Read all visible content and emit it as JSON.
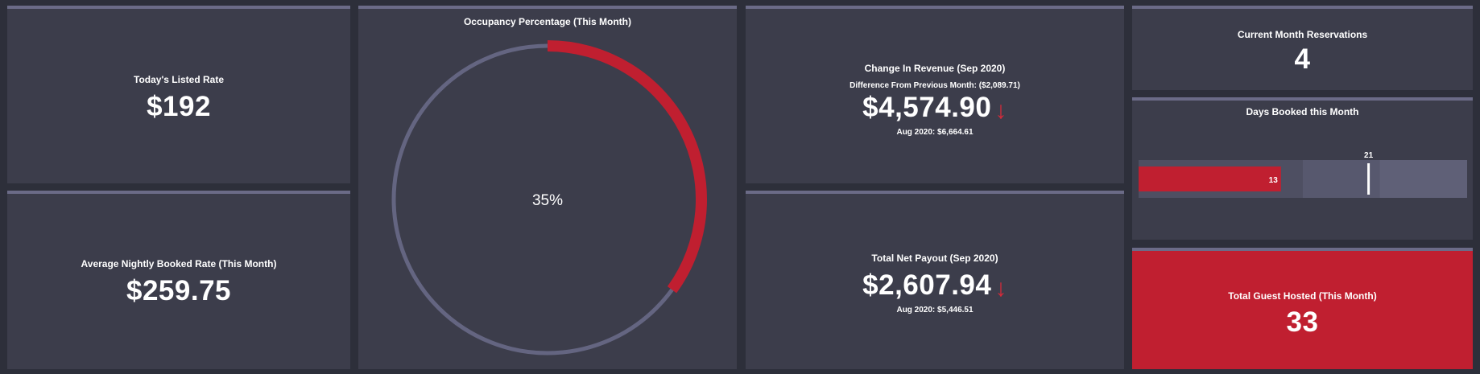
{
  "listed_rate": {
    "title": "Today's Listed Rate",
    "value": "$192"
  },
  "avg_rate": {
    "title": "Average Nightly Booked Rate (This Month)",
    "value": "$259.75"
  },
  "occupancy": {
    "title": "Occupancy Percentage (This Month)",
    "label": "35%",
    "fraction": 0.35,
    "fill_color": "#c01f30",
    "track_color": "#646581"
  },
  "revenue": {
    "title": "Change In Revenue (Sep 2020)",
    "difference": "Difference From Previous Month: ($2,089.71)",
    "value": "$4,574.90",
    "arrow": "↓",
    "previous": "Aug 2020: $6,664.61"
  },
  "payout": {
    "title": "Total Net Payout (Sep 2020)",
    "value": "$2,607.94",
    "arrow": "↓",
    "previous": "Aug 2020: $5,446.51"
  },
  "reservations": {
    "title": "Current Month Reservations",
    "value": "4"
  },
  "days_booked": {
    "title": "Days Booked this Month",
    "booked": 13,
    "booked_label": "13",
    "target": 21,
    "target_label": "21",
    "max": 30,
    "bands": [
      15,
      22
    ]
  },
  "guests": {
    "title": "Total Guest Hosted (This Month)",
    "value": "33"
  },
  "colors": {
    "accent": "#c01f30",
    "panel": "#3c3d4b",
    "background": "#2d2f3a"
  }
}
